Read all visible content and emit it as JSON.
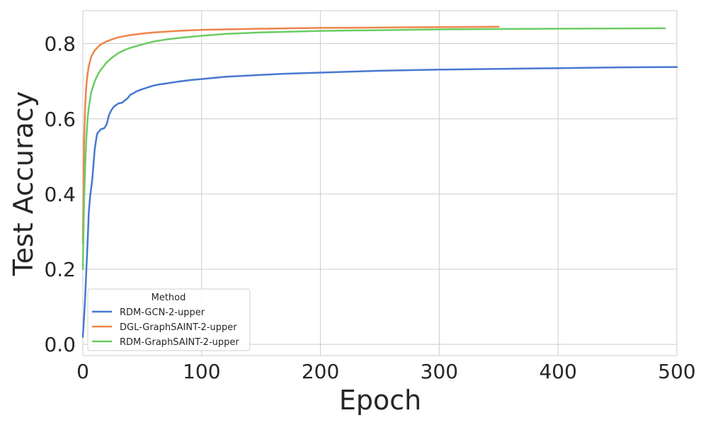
{
  "chart_data": {
    "type": "line",
    "xlabel": "Epoch",
    "ylabel": "Test Accuracy",
    "xlim": [
      0,
      500
    ],
    "ylim": [
      -0.03,
      0.888
    ],
    "xticks": [
      0,
      100,
      200,
      300,
      400,
      500
    ],
    "xtick_labels": [
      "0",
      "100",
      "200",
      "300",
      "400",
      "500"
    ],
    "yticks": [
      0.0,
      0.2,
      0.4,
      0.6,
      0.8
    ],
    "ytick_labels": [
      "0.0",
      "0.2",
      "0.4",
      "0.6",
      "0.8"
    ],
    "grid": true,
    "legend": {
      "title": "Method",
      "placement": "lower-left"
    },
    "series": [
      {
        "name": "RDM-GCN-2-upper",
        "color": "#4878d0",
        "x": [
          0,
          1,
          2,
          3,
          4,
          5,
          6,
          8,
          10,
          12,
          15,
          18,
          20,
          22,
          24,
          26,
          28,
          30,
          33,
          35,
          38,
          40,
          43,
          45,
          50,
          55,
          60,
          65,
          70,
          80,
          90,
          100,
          120,
          150,
          170,
          200,
          250,
          300,
          350,
          400,
          450,
          500
        ],
        "y": [
          0.02,
          0.07,
          0.13,
          0.2,
          0.27,
          0.35,
          0.39,
          0.44,
          0.52,
          0.56,
          0.572,
          0.575,
          0.585,
          0.61,
          0.623,
          0.632,
          0.637,
          0.641,
          0.643,
          0.648,
          0.656,
          0.664,
          0.669,
          0.673,
          0.679,
          0.684,
          0.689,
          0.692,
          0.694,
          0.699,
          0.703,
          0.706,
          0.712,
          0.717,
          0.72,
          0.723,
          0.728,
          0.731,
          0.733,
          0.735,
          0.737,
          0.738
        ]
      },
      {
        "name": "DGL-GraphSAINT-2-upper",
        "color": "#ee854a",
        "x": [
          0,
          1,
          2,
          3,
          4,
          5,
          7,
          10,
          13,
          15,
          20,
          25,
          30,
          40,
          50,
          60,
          80,
          100,
          150,
          200,
          250,
          300,
          350
        ],
        "y": [
          0.27,
          0.54,
          0.64,
          0.69,
          0.72,
          0.74,
          0.765,
          0.782,
          0.792,
          0.798,
          0.806,
          0.812,
          0.817,
          0.823,
          0.827,
          0.83,
          0.834,
          0.837,
          0.84,
          0.842,
          0.843,
          0.844,
          0.845
        ]
      },
      {
        "name": "RDM-GraphSAINT-2-upper",
        "color": "#6acc64",
        "x": [
          0,
          1,
          2,
          3,
          4,
          5,
          7,
          10,
          13,
          15,
          18,
          20,
          25,
          30,
          35,
          40,
          50,
          60,
          70,
          80,
          100,
          120,
          150,
          200,
          250,
          300,
          400,
          490
        ],
        "y": [
          0.2,
          0.38,
          0.48,
          0.55,
          0.6,
          0.63,
          0.67,
          0.7,
          0.72,
          0.73,
          0.742,
          0.75,
          0.764,
          0.775,
          0.783,
          0.789,
          0.798,
          0.806,
          0.811,
          0.815,
          0.821,
          0.826,
          0.83,
          0.834,
          0.836,
          0.838,
          0.84,
          0.841
        ]
      }
    ]
  }
}
